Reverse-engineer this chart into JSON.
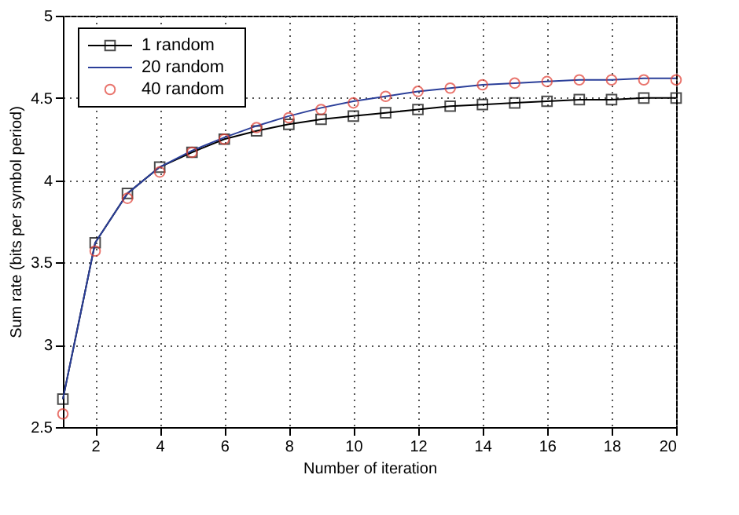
{
  "chart_data": {
    "type": "line",
    "xlabel": "Number of iteration",
    "ylabel": "Sum rate (bits per symbol period)",
    "x": [
      1,
      2,
      3,
      4,
      5,
      6,
      7,
      8,
      9,
      10,
      11,
      12,
      13,
      14,
      15,
      16,
      17,
      18,
      19,
      20
    ],
    "xlim": [
      1,
      20
    ],
    "xticks": [
      2,
      4,
      6,
      8,
      10,
      12,
      14,
      16,
      18,
      20
    ],
    "ylim": [
      2.5,
      5
    ],
    "yticks": [
      2.5,
      3,
      3.5,
      4,
      4.5,
      5
    ],
    "grid": true,
    "legend": "top left",
    "series": [
      {
        "name": "1 random",
        "color": "#000000",
        "marker": "square",
        "values": [
          2.67,
          3.62,
          3.92,
          4.08,
          4.17,
          4.25,
          4.3,
          4.34,
          4.37,
          4.39,
          4.41,
          4.43,
          4.45,
          4.46,
          4.47,
          4.48,
          4.49,
          4.49,
          4.5,
          4.5
        ]
      },
      {
        "name": "20 random",
        "color": "#2b3f99",
        "values": [
          2.67,
          3.62,
          3.92,
          4.08,
          4.18,
          4.26,
          4.33,
          4.39,
          4.44,
          4.48,
          4.51,
          4.54,
          4.56,
          4.58,
          4.59,
          4.6,
          4.61,
          4.61,
          4.62,
          4.62
        ]
      },
      {
        "name": "40 random",
        "type": "scatter",
        "color": "#e03c31",
        "marker": "circle",
        "values": [
          2.58,
          3.57,
          3.89,
          4.05,
          4.17,
          4.25,
          4.32,
          4.38,
          4.43,
          4.47,
          4.51,
          4.54,
          4.56,
          4.58,
          4.59,
          4.6,
          4.61,
          4.61,
          4.61,
          4.61
        ]
      }
    ]
  }
}
